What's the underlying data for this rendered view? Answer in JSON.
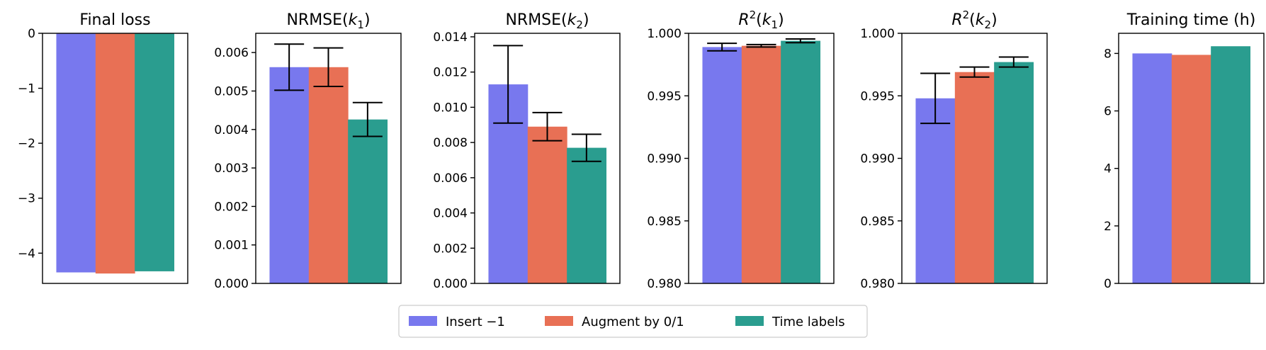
{
  "colors": {
    "insert": "#7878EE",
    "augment": "#E87055",
    "time": "#2A9D8F",
    "axis": "#000000"
  },
  "legend": {
    "items": [
      {
        "label": "Insert −1"
      },
      {
        "label": "Augment by 0/1"
      },
      {
        "label": "Time labels"
      }
    ]
  },
  "chart_data": [
    {
      "type": "bar",
      "title": "Final loss",
      "categories": [
        "Insert −1",
        "Augment by 0/1",
        "Time labels"
      ],
      "values": [
        -4.35,
        -4.37,
        -4.33
      ],
      "ylim": [
        -4.55,
        0
      ],
      "yticks": [
        0,
        -1,
        -2,
        -3,
        -4
      ],
      "yticklabels": [
        "0",
        "−1",
        "−2",
        "−3",
        "−4"
      ],
      "xlabel": "",
      "ylabel": "",
      "grid": false
    },
    {
      "type": "bar",
      "title": "NRMSE(k1)",
      "categories": [
        "Insert −1",
        "Augment by 0/1",
        "Time labels"
      ],
      "values": [
        0.00562,
        0.00562,
        0.00426
      ],
      "errors": [
        0.0006,
        0.0005,
        0.00044
      ],
      "ylim": [
        0,
        0.0065
      ],
      "yticks": [
        0,
        0.001,
        0.002,
        0.003,
        0.004,
        0.005,
        0.006
      ],
      "yticklabels": [
        "0.000",
        "0.001",
        "0.002",
        "0.003",
        "0.004",
        "0.005",
        "0.006"
      ],
      "xlabel": "",
      "ylabel": "",
      "grid": false
    },
    {
      "type": "bar",
      "title": "NRMSE(k2)",
      "categories": [
        "Insert −1",
        "Augment by 0/1",
        "Time labels"
      ],
      "values": [
        0.0113,
        0.0089,
        0.0077
      ],
      "errors": [
        0.0022,
        0.0008,
        0.00077
      ],
      "ylim": [
        0,
        0.0142
      ],
      "yticks": [
        0,
        0.002,
        0.004,
        0.006,
        0.008,
        0.01,
        0.012,
        0.014
      ],
      "yticklabels": [
        "0.000",
        "0.002",
        "0.004",
        "0.006",
        "0.008",
        "0.010",
        "0.012",
        "0.014"
      ],
      "xlabel": "",
      "ylabel": "",
      "grid": false
    },
    {
      "type": "bar",
      "title": "R2(k1)",
      "categories": [
        "Insert −1",
        "Augment by 0/1",
        "Time labels"
      ],
      "values": [
        0.9989,
        0.999,
        0.9994
      ],
      "errors": [
        0.0003,
        0.0001,
        0.00015
      ],
      "ylim": [
        0.98,
        1.0
      ],
      "yticks": [
        0.98,
        0.985,
        0.99,
        0.995,
        1.0
      ],
      "yticklabels": [
        "0.980",
        "0.985",
        "0.990",
        "0.995",
        "1.000"
      ],
      "xlabel": "",
      "ylabel": "",
      "grid": false
    },
    {
      "type": "bar",
      "title": "R2(k2)",
      "categories": [
        "Insert −1",
        "Augment by 0/1",
        "Time labels"
      ],
      "values": [
        0.9948,
        0.9969,
        0.9977
      ],
      "errors": [
        0.002,
        0.0004,
        0.0004
      ],
      "ylim": [
        0.98,
        1.0
      ],
      "yticks": [
        0.98,
        0.985,
        0.99,
        0.995,
        1.0
      ],
      "yticklabels": [
        "0.980",
        "0.985",
        "0.990",
        "0.995",
        "1.000"
      ],
      "xlabel": "",
      "ylabel": "",
      "grid": false
    },
    {
      "type": "bar",
      "title": "Training time (h)",
      "categories": [
        "Insert −1",
        "Augment by 0/1",
        "Time labels"
      ],
      "values": [
        8.0,
        7.95,
        8.25
      ],
      "ylim": [
        0,
        8.7
      ],
      "yticks": [
        0,
        2,
        4,
        6,
        8
      ],
      "yticklabels": [
        "0",
        "2",
        "4",
        "6",
        "8"
      ],
      "xlabel": "",
      "ylabel": "",
      "grid": false
    }
  ]
}
